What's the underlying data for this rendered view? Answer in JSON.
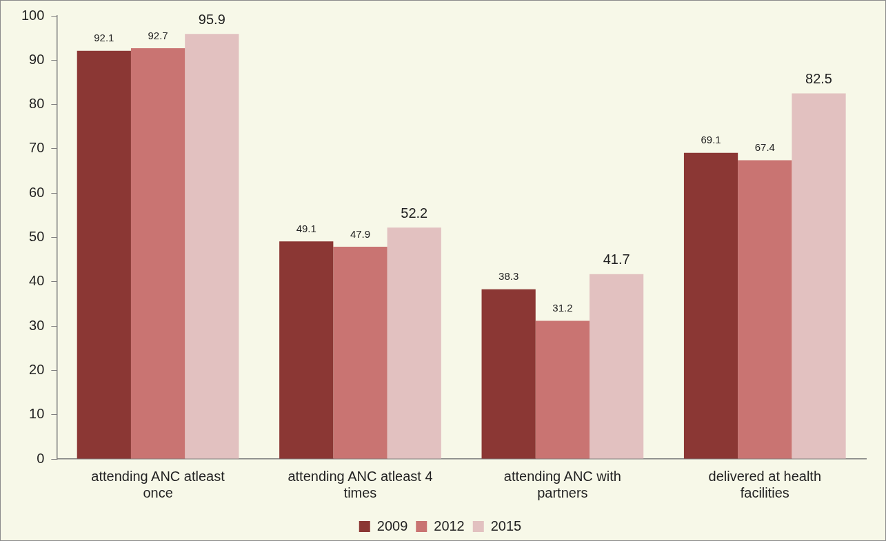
{
  "chart_data": {
    "type": "bar",
    "categories": [
      "attending ANC atleast once",
      "attending ANC atleast 4 times",
      "attending ANC with partners",
      "delivered at health facilities"
    ],
    "series": [
      {
        "name": "2009",
        "color": "#8b3734",
        "values": [
          92.1,
          49.1,
          38.3,
          69.1
        ]
      },
      {
        "name": "2012",
        "color": "#c97472",
        "values": [
          92.7,
          47.9,
          31.2,
          67.4
        ]
      },
      {
        "name": "2015",
        "color": "#e2c1c0",
        "values": [
          95.9,
          52.2,
          41.7,
          82.5
        ]
      }
    ],
    "ylim": [
      0,
      100
    ],
    "yticks": [
      0,
      10,
      20,
      30,
      40,
      50,
      60,
      70,
      80,
      90,
      100
    ],
    "grid": false,
    "legend": "bottom",
    "data_labels": true
  }
}
